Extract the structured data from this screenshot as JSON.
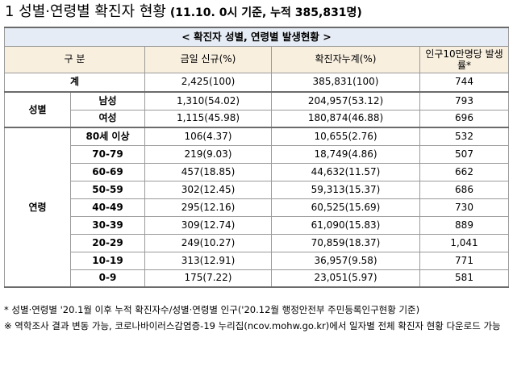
{
  "title": {
    "main": "1  성별·연령별 확진자 현황",
    "sub": " (11.10. 0시 기준, 누적 385,831명)"
  },
  "table": {
    "caption": "< 확진자 성별, 연령별 발생현황 >",
    "headers": {
      "category": "구 분",
      "new": "금일 신규(%)",
      "cumulative": "확진자누계(%)",
      "rate": "인구10만명당 발생률*"
    },
    "total": {
      "label": "계",
      "new": "2,425(100)",
      "cumulative": "385,831(100)",
      "rate": "744"
    },
    "sex": {
      "group_label": "성별",
      "rows": [
        {
          "label": "남성",
          "new": "1,310(54.02)",
          "cumulative": "204,957(53.12)",
          "rate": "793"
        },
        {
          "label": "여성",
          "new": "1,115(45.98)",
          "cumulative": "180,874(46.88)",
          "rate": "696"
        }
      ]
    },
    "age": {
      "group_label": "연령",
      "rows": [
        {
          "label": "80세 이상",
          "new": "106(4.37)",
          "cumulative": "10,655(2.76)",
          "rate": "532"
        },
        {
          "label": "70-79",
          "new": "219(9.03)",
          "cumulative": "18,749(4.86)",
          "rate": "507"
        },
        {
          "label": "60-69",
          "new": "457(18.85)",
          "cumulative": "44,632(11.57)",
          "rate": "662"
        },
        {
          "label": "50-59",
          "new": "302(12.45)",
          "cumulative": "59,313(15.37)",
          "rate": "686"
        },
        {
          "label": "40-49",
          "new": "295(12.16)",
          "cumulative": "60,525(15.69)",
          "rate": "730"
        },
        {
          "label": "30-39",
          "new": "309(12.74)",
          "cumulative": "61,090(15.83)",
          "rate": "889"
        },
        {
          "label": "20-29",
          "new": "249(10.27)",
          "cumulative": "70,859(18.37)",
          "rate": "1,041"
        },
        {
          "label": "10-19",
          "new": "313(12.91)",
          "cumulative": "36,957(9.58)",
          "rate": "771"
        },
        {
          "label": "0-9",
          "new": "175(7.22)",
          "cumulative": "23,051(5.97)",
          "rate": "581"
        }
      ]
    }
  },
  "notes": [
    "* 성별·연령별 '20.1월 이후 누적 확진자수/성별·연령별 인구('20.12월 행정안전부 주민등록인구현황 기준)",
    "※ 역학조사 결과 변동 가능, 코로나바이러스감염증-19 누리집(ncov.mohw.go.kr)에서 일자별 전체 확진자 현황 다운로드 가능"
  ]
}
